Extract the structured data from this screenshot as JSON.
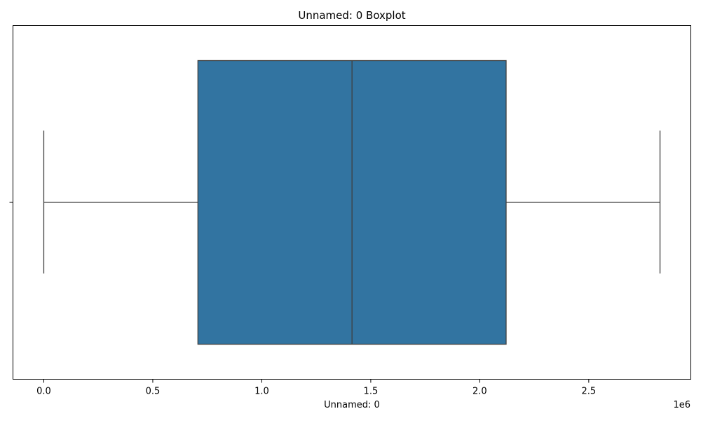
{
  "chart_data": {
    "type": "boxplot",
    "title": "Unnamed: 0 Boxplot",
    "xlabel": "Unnamed: 0",
    "ylabel": "",
    "x_scale_label": "1e6",
    "xlim": [
      -0.1414,
      2.9684
    ],
    "x_ticks": [
      0.0,
      0.5,
      1.0,
      1.5,
      2.0,
      2.5
    ],
    "x_tick_labels": [
      "0.0",
      "0.5",
      "1.0",
      "1.5",
      "2.0",
      "2.5"
    ],
    "y_ticks": [
      ""
    ],
    "grid": false,
    "legend": "none",
    "box": {
      "whisker_low": 0.0,
      "q1": 0.707,
      "median": 1.414,
      "q3": 2.121,
      "whisker_high": 2.827
    },
    "colors": {
      "box_fill": "#3274a1",
      "line": "#3f3f3f",
      "axes": "#000000"
    }
  }
}
